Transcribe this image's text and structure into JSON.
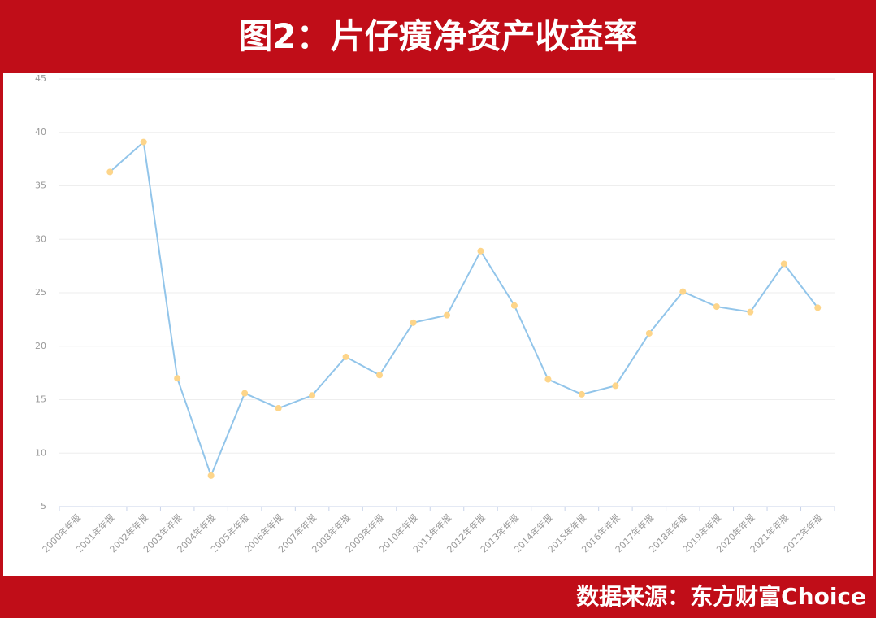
{
  "chart_data": {
    "type": "line",
    "title": "图2：片仔癀净资产收益率",
    "source": "数据来源：东方财富Choice",
    "categories": [
      "2000年年报",
      "2001年年报",
      "2002年年报",
      "2003年年报",
      "2004年年报",
      "2005年年报",
      "2006年年报",
      "2007年年报",
      "2008年年报",
      "2009年年报",
      "2010年年报",
      "2011年年报",
      "2012年年报",
      "2013年年报",
      "2014年年报",
      "2015年年报",
      "2016年年报",
      "2017年年报",
      "2018年年报",
      "2019年年报",
      "2020年年报",
      "2021年年报",
      "2022年年报"
    ],
    "values": [
      null,
      36.3,
      39.1,
      17.0,
      7.9,
      15.6,
      14.2,
      15.4,
      19.0,
      17.3,
      22.2,
      22.9,
      28.9,
      23.8,
      16.9,
      15.5,
      16.3,
      21.2,
      25.1,
      23.7,
      23.2,
      27.7,
      23.6
    ],
    "color": "#92c5ea",
    "marker_color": "#fdd58a",
    "ylim": [
      5,
      45
    ],
    "yticks": [
      5,
      10,
      15,
      20,
      25,
      30,
      35,
      40,
      45
    ],
    "grid": true
  }
}
